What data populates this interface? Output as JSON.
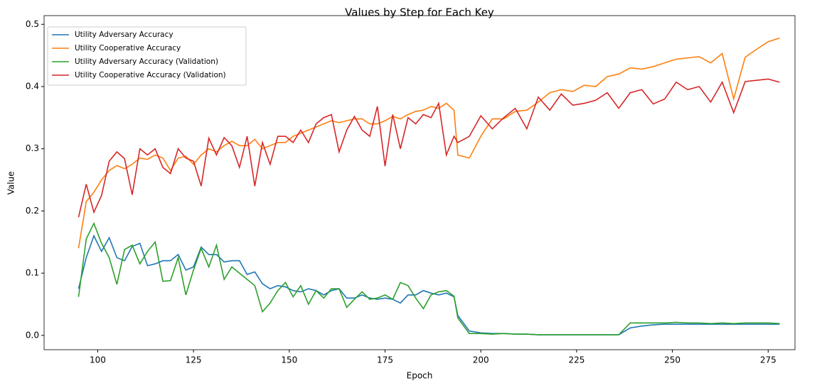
{
  "chart_data": {
    "type": "line",
    "title": "Values by Step for Each Key",
    "x_label": "Epoch",
    "y_label": "Value",
    "x": [
      95,
      97,
      99,
      101,
      103,
      105,
      107,
      109,
      111,
      113,
      115,
      117,
      119,
      121,
      123,
      125,
      127,
      129,
      131,
      133,
      135,
      137,
      139,
      141,
      143,
      145,
      147,
      149,
      151,
      153,
      155,
      157,
      159,
      161,
      163,
      165,
      167,
      169,
      171,
      173,
      175,
      177,
      179,
      181,
      183,
      185,
      187,
      189,
      191,
      193,
      194,
      197,
      200,
      203,
      206,
      209,
      212,
      215,
      218,
      221,
      224,
      227,
      230,
      233,
      236,
      239,
      242,
      245,
      248,
      251,
      254,
      257,
      260,
      263,
      266,
      269,
      272,
      275,
      278
    ],
    "series": [
      {
        "name": "Utility Adversary Accuracy",
        "color": "#1f77b4",
        "values": [
          0.075,
          0.125,
          0.16,
          0.135,
          0.157,
          0.125,
          0.12,
          0.143,
          0.148,
          0.112,
          0.115,
          0.12,
          0.12,
          0.13,
          0.105,
          0.11,
          0.142,
          0.13,
          0.13,
          0.118,
          0.12,
          0.12,
          0.098,
          0.102,
          0.083,
          0.075,
          0.08,
          0.078,
          0.072,
          0.07,
          0.075,
          0.072,
          0.065,
          0.072,
          0.075,
          0.06,
          0.06,
          0.065,
          0.06,
          0.058,
          0.06,
          0.058,
          0.052,
          0.065,
          0.065,
          0.072,
          0.068,
          0.065,
          0.068,
          0.062,
          0.032,
          0.007,
          0.004,
          0.003,
          0.003,
          0.002,
          0.002,
          0.001,
          0.001,
          0.001,
          0.001,
          0.001,
          0.001,
          0.001,
          0.001,
          0.012,
          0.015,
          0.017,
          0.018,
          0.018,
          0.018,
          0.018,
          0.018,
          0.018,
          0.018,
          0.018,
          0.018,
          0.018,
          0.018
        ]
      },
      {
        "name": "Utility Cooperative Accuracy",
        "color": "#ff7f0e",
        "values": [
          0.14,
          0.215,
          0.23,
          0.25,
          0.265,
          0.273,
          0.268,
          0.275,
          0.285,
          0.283,
          0.29,
          0.285,
          0.265,
          0.285,
          0.288,
          0.275,
          0.29,
          0.3,
          0.295,
          0.305,
          0.312,
          0.305,
          0.305,
          0.315,
          0.3,
          0.305,
          0.31,
          0.31,
          0.32,
          0.325,
          0.33,
          0.335,
          0.34,
          0.345,
          0.342,
          0.345,
          0.348,
          0.348,
          0.34,
          0.34,
          0.345,
          0.352,
          0.348,
          0.355,
          0.36,
          0.362,
          0.368,
          0.365,
          0.373,
          0.362,
          0.29,
          0.285,
          0.32,
          0.348,
          0.348,
          0.36,
          0.362,
          0.375,
          0.39,
          0.395,
          0.392,
          0.402,
          0.4,
          0.416,
          0.42,
          0.43,
          0.428,
          0.432,
          0.438,
          0.444,
          0.446,
          0.448,
          0.438,
          0.453,
          0.38,
          0.447,
          0.46,
          0.472,
          0.478
        ]
      },
      {
        "name": "Utility Adversary Accuracy (Validation)",
        "color": "#2ca02c",
        "values": [
          0.062,
          0.155,
          0.18,
          0.148,
          0.125,
          0.082,
          0.138,
          0.145,
          0.115,
          0.135,
          0.15,
          0.087,
          0.088,
          0.125,
          0.065,
          0.105,
          0.14,
          0.11,
          0.145,
          0.09,
          0.11,
          0.1,
          0.09,
          0.08,
          0.038,
          0.052,
          0.072,
          0.085,
          0.062,
          0.08,
          0.05,
          0.072,
          0.06,
          0.075,
          0.075,
          0.045,
          0.058,
          0.07,
          0.058,
          0.06,
          0.065,
          0.058,
          0.085,
          0.08,
          0.06,
          0.043,
          0.065,
          0.07,
          0.072,
          0.063,
          0.028,
          0.003,
          0.003,
          0.002,
          0.003,
          0.002,
          0.002,
          0.001,
          0.001,
          0.001,
          0.001,
          0.001,
          0.001,
          0.001,
          0.001,
          0.02,
          0.02,
          0.02,
          0.02,
          0.021,
          0.02,
          0.02,
          0.019,
          0.02,
          0.019,
          0.02,
          0.02,
          0.02,
          0.019
        ]
      },
      {
        "name": "Utility Cooperative Accuracy (Validation)",
        "color": "#d62728",
        "values": [
          0.19,
          0.243,
          0.198,
          0.225,
          0.28,
          0.295,
          0.284,
          0.226,
          0.3,
          0.29,
          0.3,
          0.27,
          0.26,
          0.3,
          0.285,
          0.28,
          0.24,
          0.317,
          0.29,
          0.318,
          0.305,
          0.27,
          0.32,
          0.24,
          0.31,
          0.275,
          0.32,
          0.32,
          0.31,
          0.33,
          0.31,
          0.34,
          0.35,
          0.355,
          0.295,
          0.33,
          0.352,
          0.33,
          0.32,
          0.368,
          0.272,
          0.355,
          0.3,
          0.35,
          0.34,
          0.355,
          0.35,
          0.373,
          0.29,
          0.32,
          0.31,
          0.32,
          0.353,
          0.332,
          0.35,
          0.365,
          0.332,
          0.383,
          0.362,
          0.388,
          0.37,
          0.373,
          0.378,
          0.39,
          0.365,
          0.39,
          0.395,
          0.372,
          0.38,
          0.407,
          0.395,
          0.4,
          0.375,
          0.407,
          0.358,
          0.408,
          0.41,
          0.412,
          0.407
        ]
      }
    ],
    "xlim": [
      86,
      282
    ],
    "ylim": [
      -0.023,
      0.514
    ],
    "xticks": [
      100,
      125,
      150,
      175,
      200,
      225,
      250,
      275
    ],
    "yticks": [
      {
        "value": 0,
        "label": "0.0"
      },
      0.1,
      0.2,
      0.3,
      0.4,
      0.5
    ],
    "grid": false,
    "legend": "upper left"
  }
}
